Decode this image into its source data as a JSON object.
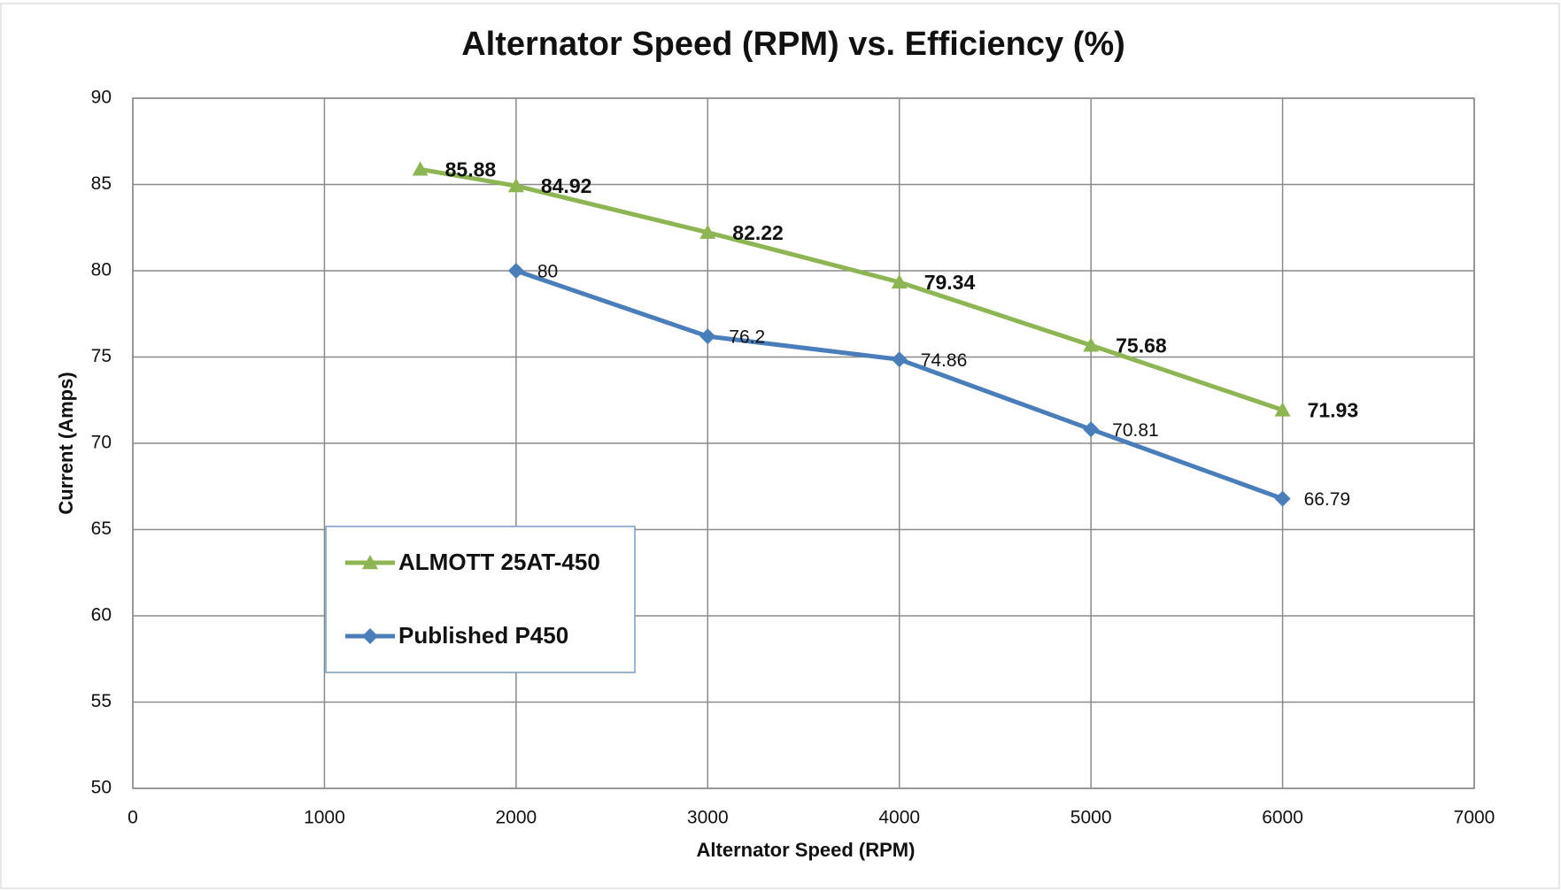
{
  "chart_data": {
    "type": "line",
    "title": "Alternator Speed (RPM) vs. Efficiency (%)",
    "x_label": "Alternator Speed (RPM)",
    "y_label": "Current (Amps)",
    "xlim": [
      0,
      7000
    ],
    "xticks": [
      0,
      1000,
      2000,
      3000,
      4000,
      5000,
      6000,
      7000
    ],
    "ylim": [
      50,
      90
    ],
    "yticks": [
      50,
      55,
      60,
      65,
      70,
      75,
      80,
      85,
      90
    ],
    "grid": true,
    "legend": "lower left",
    "series": [
      {
        "name": "ALMOTT 25AT-450",
        "color": "#8db554",
        "marker": "triangle",
        "x": [
          1500,
          2000,
          3000,
          4000,
          5000,
          6000
        ],
        "values": [
          85.88,
          84.92,
          82.22,
          79.34,
          75.68,
          71.93
        ]
      },
      {
        "name": "Published P450",
        "color": "#4a7ebb",
        "marker": "diamond",
        "x": [
          2000,
          3000,
          4000,
          5000,
          6000
        ],
        "values": [
          80,
          76.2,
          74.86,
          70.81,
          66.79
        ]
      }
    ]
  }
}
